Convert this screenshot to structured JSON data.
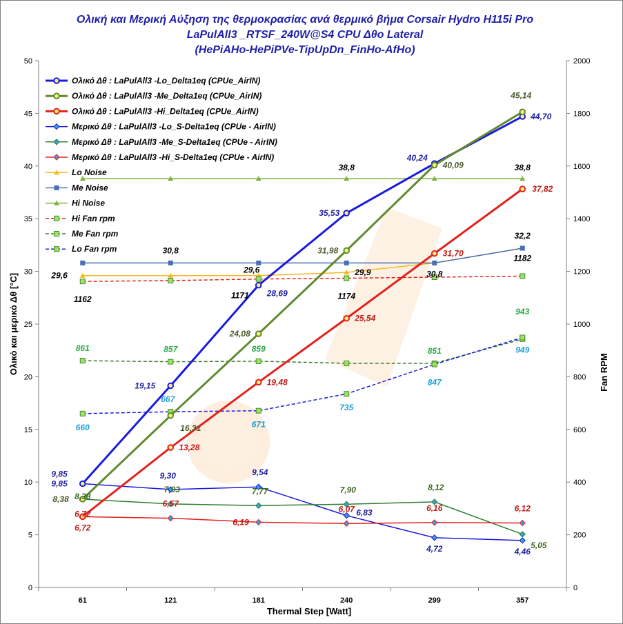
{
  "chart_data": {
    "type": "line",
    "title_lines": [
      "Ολική και Μερική Αύξηση της θερμοκρασίας ανά θερμικό βήμα   Corsair Hydro H115i Pro",
      "LaPulAll3 _RTSF_240W@S4   CPU  Δθο Lateral",
      "(HePiAHo-HePiPVe-TipUpDn_FinHo-AfHo)"
    ],
    "xlabel": "Thermal Step [Watt]",
    "ylabel": "Ολικό  και  μερικό  Δθ  [°C]",
    "y2label": "Fan RPM",
    "categories": [
      "61",
      "121",
      "181",
      "240",
      "299",
      "357"
    ],
    "ylim": [
      0,
      50
    ],
    "yticks": [
      "0",
      "5",
      "10",
      "15",
      "20",
      "25",
      "30",
      "35",
      "40",
      "45",
      "50"
    ],
    "y2lim": [
      0,
      2000
    ],
    "y2ticks": [
      "0",
      "200",
      "400",
      "600",
      "800",
      "1000",
      "1200",
      "1400",
      "1600",
      "1800",
      "2000"
    ],
    "grid": false,
    "legend_position": "top-left inside",
    "series": [
      {
        "name": "Ολικό Δθ : LaPulAll3 -Lo_Delta1eq (CPUe_AirIN)",
        "axis": "left",
        "style": "thick",
        "marker": "circle",
        "color": "#1a1adf",
        "label_color": "#1f1fa0",
        "values": [
          9.85,
          19.15,
          28.69,
          35.53,
          40.24,
          44.7
        ],
        "labels": [
          "9,85",
          "19,15",
          "28,69",
          "35,53",
          "40,24",
          "44,70"
        ]
      },
      {
        "name": "Ολικό Δθ : LaPulAll3 -Me_Delta1eq (CPUe_AirIN)",
        "axis": "left",
        "style": "thick",
        "marker": "circle",
        "color": "#5f8a2e",
        "label_color": "#4a5a2a",
        "values": [
          8.38,
          16.31,
          24.08,
          31.98,
          40.09,
          45.14
        ],
        "labels": [
          "8,38",
          "16,31",
          "24,08",
          "31,98",
          "40,09",
          "45,14"
        ]
      },
      {
        "name": "Ολικό Δθ : LaPulAll3 -Hi_Delta1eq (CPUe_AirIN)",
        "axis": "left",
        "style": "thick",
        "marker": "circle",
        "color": "#e3211c",
        "label_color": "#c01a16",
        "values": [
          6.72,
          13.28,
          19.48,
          25.54,
          31.7,
          37.82
        ],
        "labels": [
          "6,72",
          "13,28",
          "19,48",
          "25,54",
          "31,70",
          "37,82"
        ]
      },
      {
        "name": "Μερικό Δθ : LaPulAll3 -Lo_S-Delta1eq (CPUe - AirIN)",
        "axis": "left",
        "style": "thin",
        "marker": "diamond",
        "color": "#1a1adf",
        "label_color": "#1f1fa0",
        "values": [
          9.85,
          9.3,
          9.54,
          6.83,
          4.72,
          4.46
        ],
        "labels": [
          "9,85",
          "9,30",
          "9,54",
          "6,83",
          "4,72",
          "4,46"
        ]
      },
      {
        "name": "Μερικό Δθ : LaPulAll3 -Me_S-Delta1eq (CPUe - AirIN)",
        "axis": "left",
        "style": "thin",
        "marker": "diamond",
        "color": "#2e7d32",
        "label_color": "#3a6a1e",
        "values": [
          8.38,
          7.93,
          7.77,
          7.9,
          8.12,
          5.05
        ],
        "labels": [
          "8,38",
          "7,93",
          "7,77",
          "7,90",
          "8,12",
          "5,05"
        ]
      },
      {
        "name": "Μερικό Δθ : LaPulAll3 -Hi_S-Delta1eq (CPUe - AirIN)",
        "axis": "left",
        "style": "thin",
        "marker": "diamond",
        "color": "#e3211c",
        "label_color": "#c01a16",
        "values": [
          6.72,
          6.57,
          6.19,
          6.07,
          6.16,
          6.12
        ],
        "labels": [
          "6,72",
          "6,57",
          "6,19",
          "6,07",
          "6,16",
          "6,12"
        ]
      },
      {
        "name": "Lo Noise",
        "axis": "left",
        "style": "thin",
        "marker": "triangle",
        "color": "#f5b820",
        "label_color": "#000000",
        "values": [
          29.6,
          29.6,
          29.6,
          29.9,
          30.8,
          32.2
        ],
        "labels": [
          "29,6",
          "",
          "29,6",
          "29,9",
          "30,8",
          ""
        ]
      },
      {
        "name": "Me Noise",
        "axis": "left",
        "style": "thin",
        "marker": "square",
        "color": "#4a6fb3",
        "label_color": "#000000",
        "values": [
          30.8,
          30.8,
          30.8,
          30.8,
          30.8,
          32.2
        ],
        "labels": [
          "",
          "30,8",
          "",
          "",
          "",
          "32,2"
        ]
      },
      {
        "name": "Hi Noise",
        "axis": "left",
        "style": "thin",
        "marker": "triangle",
        "color": "#7cb342",
        "label_color": "#000000",
        "values": [
          38.8,
          38.8,
          38.8,
          38.8,
          38.8,
          38.8
        ],
        "labels": [
          "",
          "",
          "",
          "38,8",
          "",
          "38,8"
        ]
      },
      {
        "name": "Hi Fan rpm",
        "axis": "right",
        "style": "dashed",
        "marker": "square-green",
        "color": "#e3211c",
        "label_color": "#000000",
        "values": [
          1162,
          1165,
          1171,
          1174,
          1178,
          1182
        ],
        "labels": [
          "1162",
          "",
          "1171",
          "1174",
          "",
          "1182"
        ]
      },
      {
        "name": "Me Fan rpm",
        "axis": "right",
        "style": "dashed",
        "marker": "square-green",
        "color": "#3a7a2a",
        "label_color": "#2ea84a",
        "values": [
          861,
          857,
          859,
          851,
          851,
          943
        ],
        "labels": [
          "861",
          "857",
          "859",
          "",
          "851",
          "943"
        ]
      },
      {
        "name": "Lo Fan rpm",
        "axis": "right",
        "style": "dashed",
        "marker": "square-green",
        "color": "#1a1adf",
        "label_color": "#1fa0d8",
        "values": [
          660,
          667,
          671,
          735,
          847,
          949
        ],
        "labels": [
          "660",
          "667",
          "671",
          "735",
          "847",
          "949"
        ]
      }
    ]
  }
}
